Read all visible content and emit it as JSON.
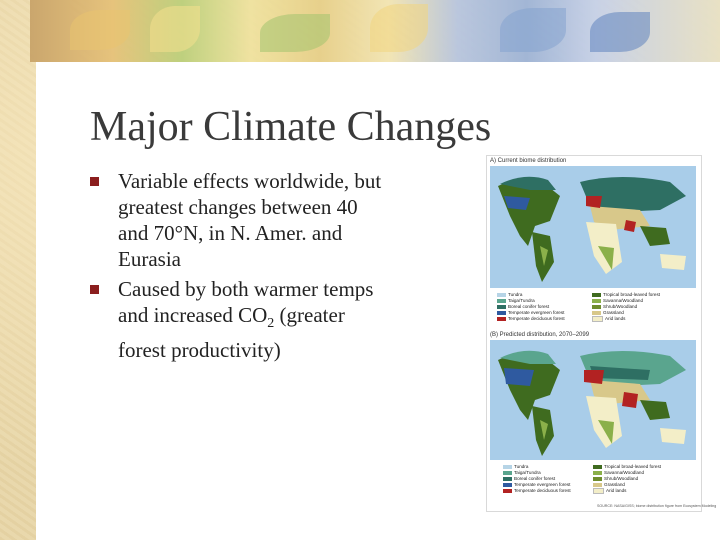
{
  "slide": {
    "title": "Major Climate Changes",
    "bullets": [
      {
        "text": "Variable effects worldwide, but greatest changes between 40 and 70°N, in N. Amer. and Eurasia"
      },
      {
        "text_prefix": "Caused by both warmer temps and increased CO",
        "subscript": "2",
        "text_suffix": " (greater forest productivity)"
      }
    ],
    "bullet_color": "#8b1e1e"
  },
  "maps": {
    "top_caption": "A) Current biome distribution",
    "bottom_caption": "(B) Predicted distribution, 2070–2099",
    "legend": [
      {
        "label": "Tundra",
        "color": "#b6d4e6"
      },
      {
        "label": "Taiga/Tundra",
        "color": "#5aa58e"
      },
      {
        "label": "Boreal conifer forest",
        "color": "#2e6f63"
      },
      {
        "label": "Temperate evergreen forest",
        "color": "#2f5aa0"
      },
      {
        "label": "Temperate deciduous forest",
        "color": "#b22222"
      },
      {
        "label": "Tropical broad-leaved forest",
        "color": "#3f6b1f"
      },
      {
        "label": "Savanna/Woodland",
        "color": "#8bb04a"
      },
      {
        "label": "Shrub/Woodland",
        "color": "#6f8d2e"
      },
      {
        "label": "Grassland",
        "color": "#d8c88a"
      },
      {
        "label": "Arid lands",
        "color": "#f3eec8"
      }
    ],
    "credit": "SOURCE: NASA/GISS; biome distribution figure from Ecosystem Modeling"
  }
}
